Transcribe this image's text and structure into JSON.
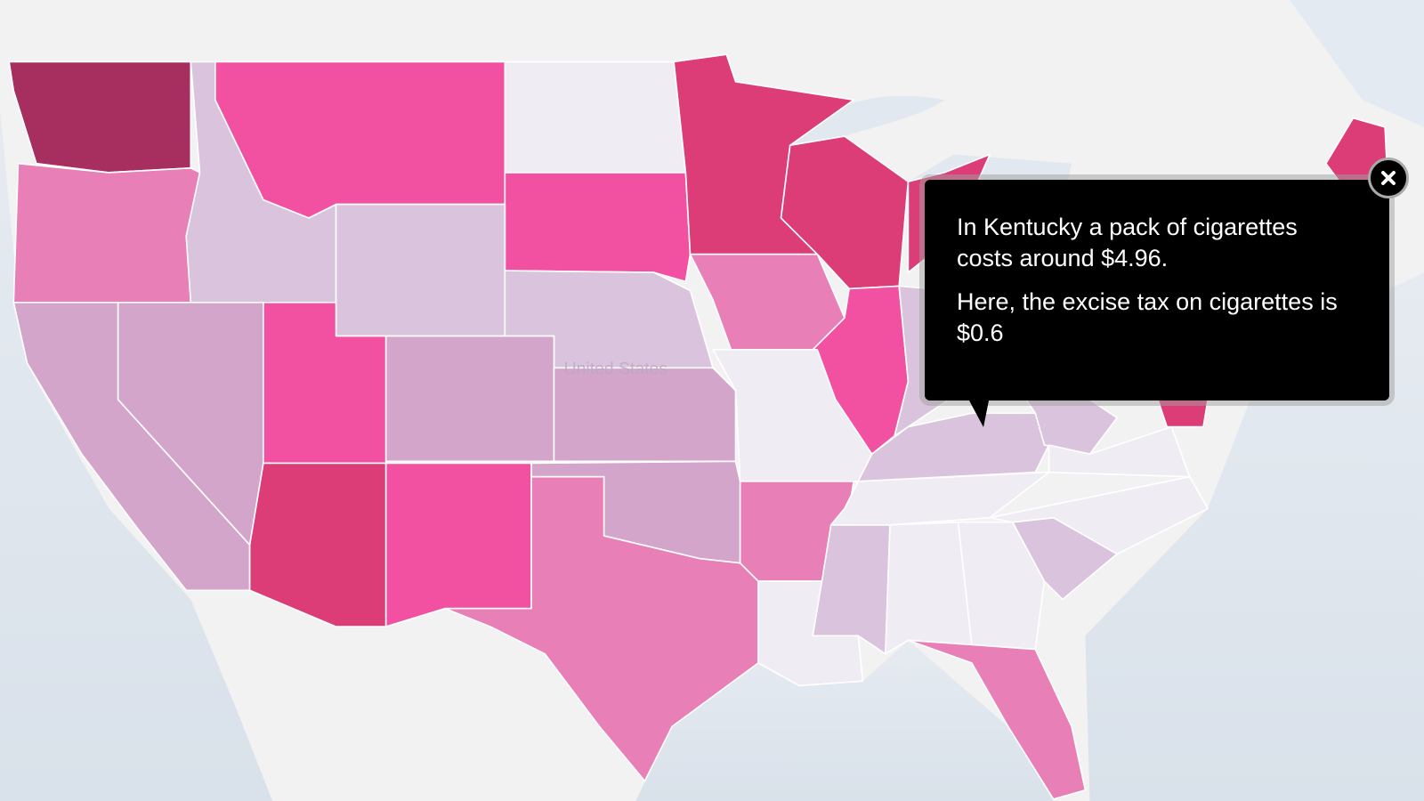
{
  "map_label": "United States",
  "tooltip": {
    "paragraphs": [
      "In Kentucky a pack of cigarettes costs around $4.96.",
      "Here, the excise tax on cigarettes is $0.6"
    ]
  }
}
